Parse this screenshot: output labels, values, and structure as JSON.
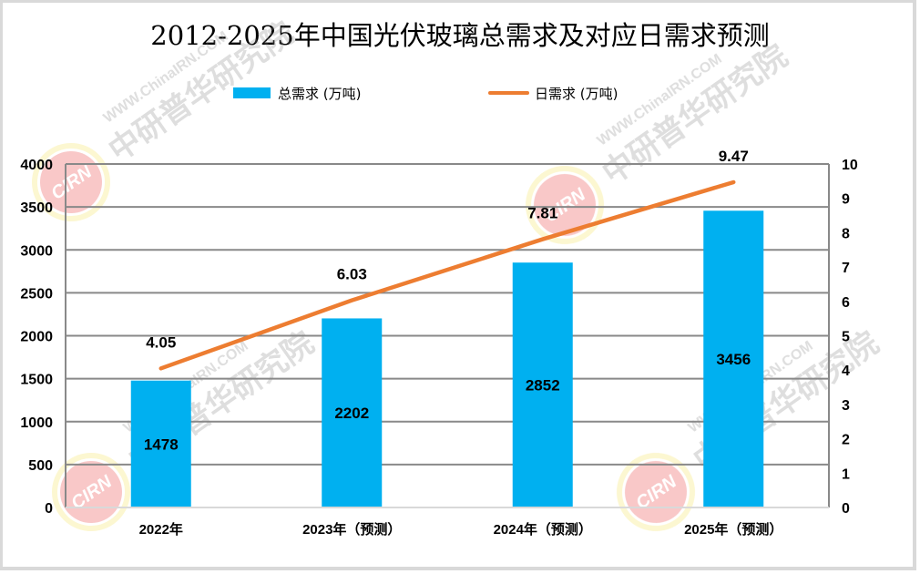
{
  "title": "2012-2025年中国光伏玻璃总需求及对应日需求预测",
  "colors": {
    "bar": "#00b0f0",
    "line": "#ed7d31",
    "grid": "#898989",
    "text": "#000000"
  },
  "legend": [
    {
      "label": "总需求 (万吨)",
      "icon": "bar-swatch-icon"
    },
    {
      "label": "日需求 (万吨)",
      "icon": "line-swatch-icon"
    }
  ],
  "watermark": {
    "url_text": "WWW.ChinaIRN.COM",
    "org_text": "中研普华研究院",
    "logo_text": "CIRN"
  },
  "chart_data": {
    "type": "bar",
    "title": "2012-2025年中国光伏玻璃总需求及对应日需求预测",
    "categories": [
      "2022年",
      "2023年（预测）",
      "2024年（预测）",
      "2025年（预测）"
    ],
    "series": [
      {
        "name": "总需求 (万吨)",
        "type": "bar",
        "axis": "left",
        "values": [
          1478,
          2202,
          2852,
          3456
        ]
      },
      {
        "name": "日需求 (万吨)",
        "type": "line",
        "axis": "right",
        "values": [
          4.05,
          6.03,
          7.81,
          9.47
        ]
      }
    ],
    "xlabel": "",
    "ylabel": "",
    "ylim": [
      0,
      4000
    ],
    "y_ticks": [
      0,
      500,
      1000,
      1500,
      2000,
      2500,
      3000,
      3500,
      4000
    ],
    "y2lim": [
      0,
      10
    ],
    "y2_ticks": [
      0,
      1,
      2,
      3,
      4,
      5,
      6,
      7,
      8,
      9,
      10
    ],
    "grid": true,
    "legend_position": "top"
  }
}
